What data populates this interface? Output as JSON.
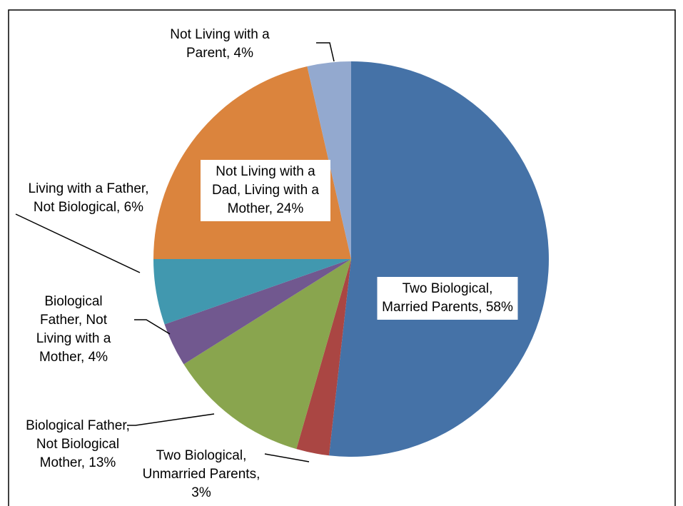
{
  "chart_data": {
    "type": "pie",
    "values": [
      58,
      3,
      13,
      4,
      6,
      24,
      4
    ],
    "value_labels": [
      "Two Biological, Married Parents, 58%",
      "Two Biological, Unmarried Parents, 3%",
      "Biological Father, Not Biological Mother, 13%",
      "Biological Father, Not Living with a Mother, 4%",
      "Living with a Father, Not Biological, 6%",
      "Not Living with a Dad, Living with a Mother, 24%",
      "Not Living with a Parent, 4%"
    ],
    "colors": [
      "#4572a7",
      "#aa4643",
      "#89a54e",
      "#71588f",
      "#4198af",
      "#db843d",
      "#93a9cf"
    ]
  }
}
